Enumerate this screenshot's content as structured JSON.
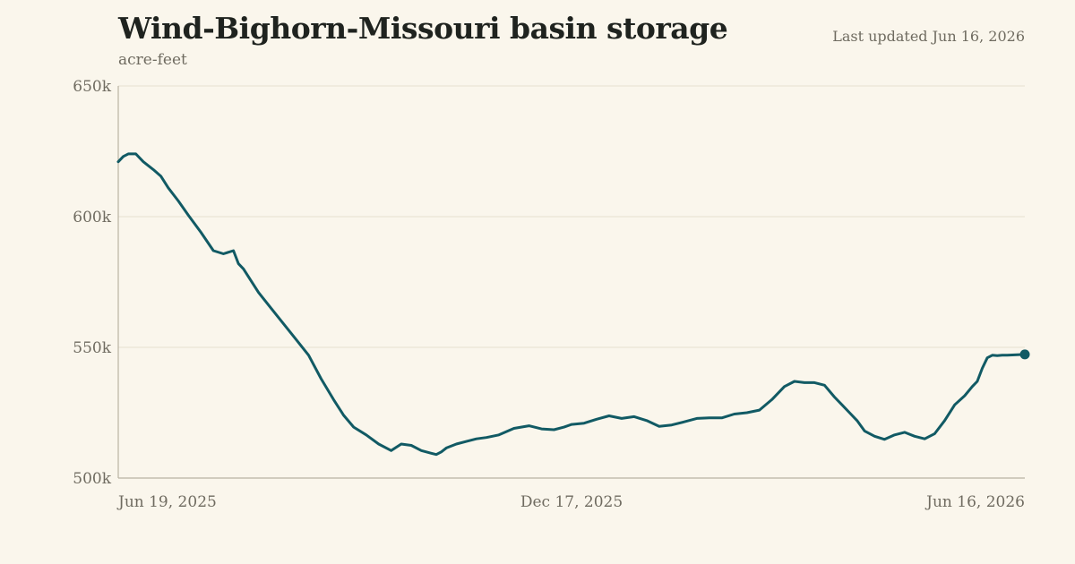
{
  "header": {
    "title": "Wind-Bighorn-Missouri basin storage",
    "subtitle": "acre-feet",
    "updated": "Last updated Jun 16, 2026"
  },
  "colors": {
    "background": "#faf6ec",
    "line": "#115a64",
    "grid": "#e6e0cf",
    "axis": "#b9b3a3",
    "text": "#6f6b60"
  },
  "chart_data": {
    "type": "line",
    "title": "Wind-Bighorn-Missouri basin storage",
    "ylabel": "acre-feet",
    "ylim": [
      500000,
      650000
    ],
    "yticks": [
      500000,
      550000,
      600000,
      650000
    ],
    "ytick_labels": [
      "500k",
      "550k",
      "600k",
      "650k"
    ],
    "xlim": [
      "2025-06-19",
      "2026-06-16"
    ],
    "xticks": [
      "2025-06-19",
      "2025-12-17",
      "2026-06-16"
    ],
    "xtick_labels": [
      "Jun 19, 2025",
      "Dec 17, 2025",
      "Jun 16, 2026"
    ],
    "grid": true,
    "series": [
      {
        "x": [
          "2025-06-19",
          "2025-06-21",
          "2025-06-23",
          "2025-06-26",
          "2025-06-29",
          "2025-07-03",
          "2025-07-06",
          "2025-07-09",
          "2025-07-13",
          "2025-07-17",
          "2025-07-22",
          "2025-07-27",
          "2025-07-31",
          "2025-08-04",
          "2025-08-06",
          "2025-08-08",
          "2025-08-10",
          "2025-08-14",
          "2025-08-19",
          "2025-08-24",
          "2025-08-29",
          "2025-09-03",
          "2025-09-08",
          "2025-09-13",
          "2025-09-17",
          "2025-09-21",
          "2025-09-26",
          "2025-10-01",
          "2025-10-06",
          "2025-10-10",
          "2025-10-14",
          "2025-10-18",
          "2025-10-20",
          "2025-10-22",
          "2025-10-24",
          "2025-10-26",
          "2025-10-28",
          "2025-11-01",
          "2025-11-05",
          "2025-11-09",
          "2025-11-13",
          "2025-11-18",
          "2025-11-24",
          "2025-11-30",
          "2025-12-05",
          "2025-12-10",
          "2025-12-14",
          "2025-12-17",
          "2025-12-22",
          "2025-12-27",
          "2026-01-01",
          "2026-01-06",
          "2026-01-11",
          "2026-01-16",
          "2026-01-21",
          "2026-01-26",
          "2026-01-31",
          "2026-02-05",
          "2026-02-10",
          "2026-02-15",
          "2026-02-20",
          "2026-02-25",
          "2026-03-02",
          "2026-03-07",
          "2026-03-12",
          "2026-03-16",
          "2026-03-20",
          "2026-03-24",
          "2026-03-28",
          "2026-04-01",
          "2026-04-04",
          "2026-04-07",
          "2026-04-10",
          "2026-04-13",
          "2026-04-17",
          "2026-04-21",
          "2026-04-25",
          "2026-04-29",
          "2026-05-03",
          "2026-05-07",
          "2026-05-11",
          "2026-05-15",
          "2026-05-19",
          "2026-05-23",
          "2026-05-26",
          "2026-05-28",
          "2026-05-30",
          "2026-06-01",
          "2026-06-03",
          "2026-06-05",
          "2026-06-07",
          "2026-06-09",
          "2026-06-11",
          "2026-06-13",
          "2026-06-16"
        ],
        "values": [
          621000,
          623000,
          624000,
          624000,
          621000,
          618000,
          615500,
          611000,
          606000,
          600500,
          594000,
          587000,
          585800,
          587000,
          582000,
          580000,
          577000,
          571000,
          565000,
          559000,
          553000,
          547000,
          538000,
          530000,
          524000,
          519500,
          516500,
          513000,
          510500,
          513000,
          512500,
          510500,
          510000,
          509500,
          509000,
          510000,
          511500,
          513000,
          514000,
          515000,
          515500,
          516500,
          519000,
          520000,
          518800,
          518500,
          519500,
          520500,
          521000,
          522500,
          523800,
          522800,
          523500,
          522000,
          519800,
          520300,
          521500,
          522800,
          523000,
          523000,
          524500,
          525000,
          526000,
          530000,
          535000,
          537000,
          536500,
          536500,
          535500,
          531000,
          528000,
          525000,
          522000,
          518000,
          516000,
          514800,
          516500,
          517500,
          516000,
          515000,
          517000,
          522000,
          528000,
          531500,
          535000,
          537000,
          542000,
          546000,
          547000,
          546800,
          547000,
          547000,
          547100,
          547200,
          547300
        ]
      }
    ]
  }
}
